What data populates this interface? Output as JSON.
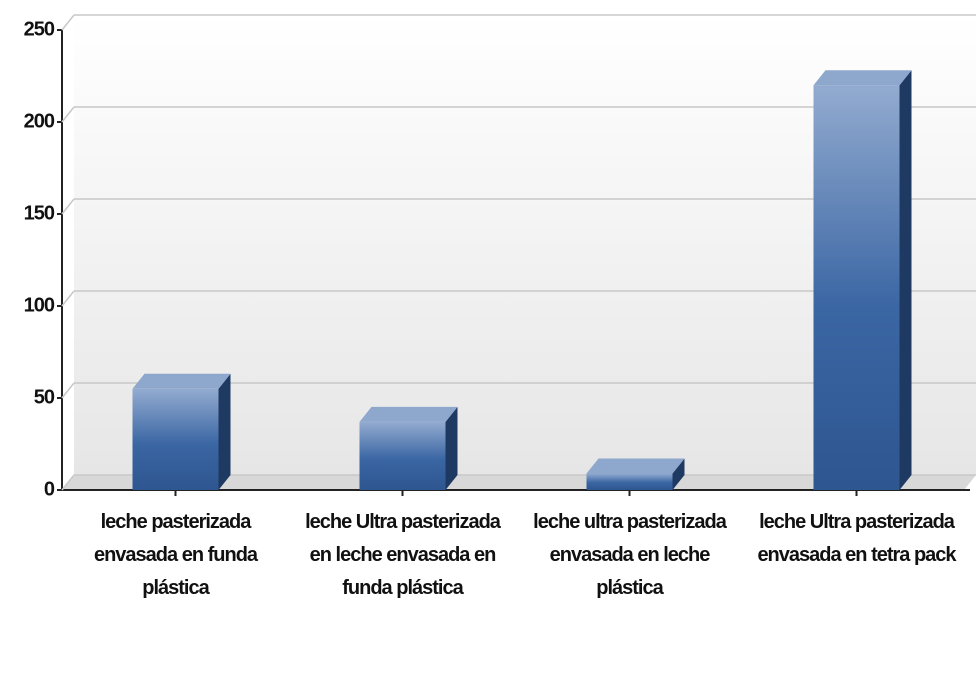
{
  "chart_data": {
    "type": "bar",
    "categories": [
      "leche pasterizada envasada en funda plástica",
      "leche Ultra pasterizada en leche envasada en funda plástica",
      "leche ultra pasterizada envasada en leche plástica",
      "leche Ultra pasterizada envasada en tetra pack"
    ],
    "values": [
      55,
      37,
      9,
      220
    ],
    "color": "#3a66a3",
    "ylim": [
      0,
      250
    ],
    "yticks": [
      0,
      50,
      100,
      150,
      200,
      250
    ],
    "grid": true
  }
}
